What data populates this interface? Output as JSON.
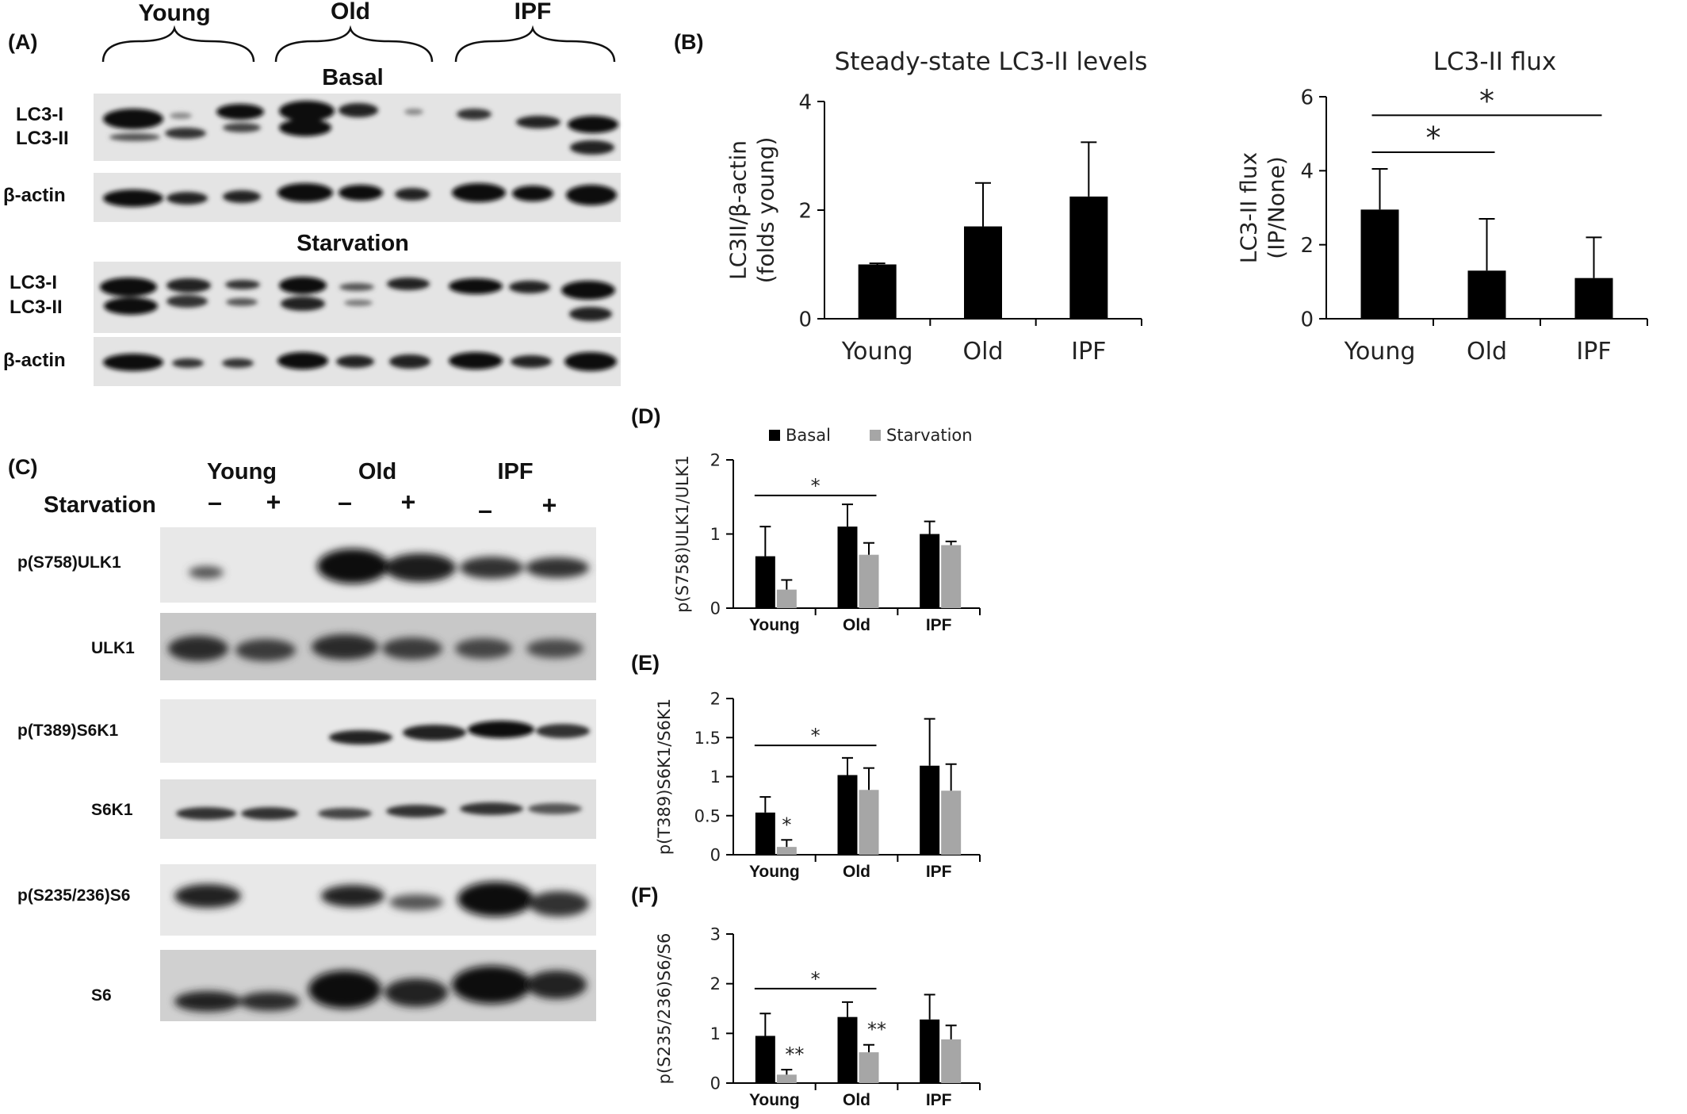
{
  "panels": {
    "A": "(A)",
    "B": "(B)",
    "C": "(C)",
    "D": "(D)",
    "E": "(E)",
    "F": "(F)"
  },
  "blot_a": {
    "groups": [
      "Young",
      "Old",
      "IPF"
    ],
    "basal_title": "Basal",
    "starvation_title": "Starvation",
    "lc3_i": "LC3-I",
    "lc3_ii": "LC3-II",
    "beta_actin": "β-actin"
  },
  "blot_c": {
    "groups": [
      "Young",
      "Old",
      "IPF"
    ],
    "starvation_label": "Starvation",
    "signs": [
      "–",
      "+",
      "–",
      "+",
      "–",
      "+"
    ],
    "rows": [
      "p(S758)ULK1",
      "ULK1",
      "p(T389)S6K1",
      "S6K1",
      "p(S235/236)S6",
      "S6"
    ]
  },
  "colors": {
    "basal": "#000000",
    "starvation": "#a6a6a6",
    "axis": "#000000"
  },
  "chart_data": [
    {
      "id": "B1",
      "type": "bar",
      "title": "Steady-state LC3-II levels",
      "ylabel": "LC3II/β-actin\n(folds young)",
      "categories": [
        "Young",
        "Old",
        "IPF"
      ],
      "values": [
        1.0,
        1.7,
        2.25
      ],
      "errors": [
        0.02,
        0.8,
        1.0
      ],
      "ylim": [
        0,
        4
      ],
      "yticks": [
        "0",
        "2",
        "4"
      ],
      "annotations": []
    },
    {
      "id": "B2",
      "type": "bar",
      "title": "LC3-II flux",
      "ylabel": "LC3-II flux\n(IP/None)",
      "categories": [
        "Young",
        "Old",
        "IPF"
      ],
      "values": [
        2.95,
        1.3,
        1.1
      ],
      "errors": [
        1.1,
        1.4,
        1.1
      ],
      "ylim": [
        0,
        6
      ],
      "yticks": [
        "0",
        "2",
        "4",
        "6"
      ],
      "annotations": [
        {
          "text": "*",
          "from": 0,
          "to": 1,
          "y": 4.5
        },
        {
          "text": "*",
          "from": 0,
          "to": 2,
          "y": 5.5
        }
      ]
    },
    {
      "id": "D",
      "type": "bar",
      "title": "",
      "ylabel": "p(S758)ULK1/ULK1",
      "categories": [
        "Young",
        "Old",
        "IPF"
      ],
      "series": [
        {
          "name": "Basal",
          "values": [
            0.7,
            1.1,
            1.0
          ],
          "errors": [
            0.4,
            0.3,
            0.17
          ]
        },
        {
          "name": "Starvation",
          "values": [
            0.25,
            0.72,
            0.85
          ],
          "errors": [
            0.13,
            0.16,
            0.05
          ]
        }
      ],
      "ylim": [
        0,
        2
      ],
      "yticks": [
        "0",
        "1",
        "2"
      ],
      "legend": "top",
      "brackets": [
        {
          "text": "*",
          "from": 0,
          "to": 1,
          "y": 1.52
        }
      ],
      "marks": []
    },
    {
      "id": "E",
      "type": "bar",
      "title": "",
      "ylabel": "p(T389)S6K1/S6K1",
      "categories": [
        "Young",
        "Old",
        "IPF"
      ],
      "series": [
        {
          "name": "Basal",
          "values": [
            0.54,
            1.02,
            1.14
          ],
          "errors": [
            0.2,
            0.22,
            0.6
          ]
        },
        {
          "name": "Starvation",
          "values": [
            0.1,
            0.83,
            0.82
          ],
          "errors": [
            0.09,
            0.28,
            0.34
          ]
        }
      ],
      "ylim": [
        0,
        2
      ],
      "yticks": [
        "0",
        "0.5",
        "1",
        "1.5",
        "2"
      ],
      "brackets": [
        {
          "text": "*",
          "from": 0,
          "to": 1,
          "y": 1.4
        }
      ],
      "marks": [
        {
          "text": "*",
          "cat": 0,
          "series": 1,
          "y": 0.3
        }
      ]
    },
    {
      "id": "F",
      "type": "bar",
      "title": "",
      "ylabel": "p(S235/236)S6/S6",
      "categories": [
        "Young",
        "Old",
        "IPF"
      ],
      "series": [
        {
          "name": "Basal",
          "values": [
            0.95,
            1.33,
            1.28
          ],
          "errors": [
            0.45,
            0.3,
            0.5
          ]
        },
        {
          "name": "Starvation",
          "values": [
            0.17,
            0.62,
            0.88
          ],
          "errors": [
            0.1,
            0.15,
            0.28
          ]
        }
      ],
      "ylim": [
        0,
        3
      ],
      "yticks": [
        "0",
        "1",
        "2",
        "3"
      ],
      "brackets": [
        {
          "text": "*",
          "from": 0,
          "to": 1,
          "y": 1.9
        }
      ],
      "marks": [
        {
          "text": "**",
          "cat": 0,
          "series": 1,
          "y": 0.45
        },
        {
          "text": "**",
          "cat": 1,
          "series": 1,
          "y": 0.95
        }
      ]
    }
  ]
}
